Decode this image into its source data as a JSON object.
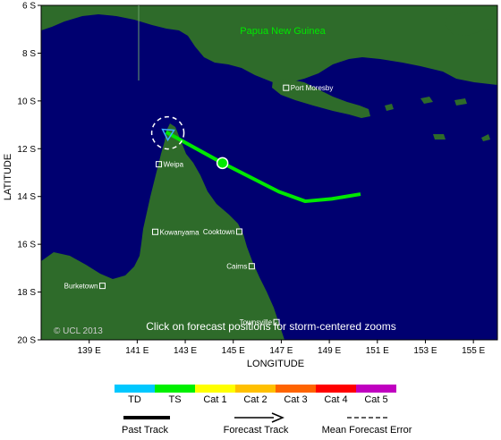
{
  "map": {
    "region_label": "Papua New Guinea",
    "x_axis_title": "LONGITUDE",
    "y_axis_title": "LATITUDE",
    "lon_ticks": [
      "139 E",
      "141 E",
      "143 E",
      "145 E",
      "147 E",
      "149 E",
      "151 E",
      "153 E",
      "155 E"
    ],
    "lat_ticks": [
      "6 S",
      "8 S",
      "10 S",
      "12 S",
      "14 S",
      "16 S",
      "18 S",
      "20 S"
    ],
    "lon_range": [
      137.0,
      156.0
    ],
    "lat_range": [
      6.0,
      20.0
    ],
    "copyright": "© UCL 2013",
    "hint": "Click on forecast positions for storm-centered zooms",
    "ocean_color": "#000070",
    "land_color": "#2e6b2a",
    "cities": [
      {
        "name": "Port Moresby",
        "lon": 147.2,
        "lat": 9.45
      },
      {
        "name": "Weipa",
        "lon": 141.9,
        "lat": 12.65
      },
      {
        "name": "Cooktown",
        "lon": 145.25,
        "lat": 15.47
      },
      {
        "name": "Kowanyama",
        "lon": 141.75,
        "lat": 15.48
      },
      {
        "name": "Cairns",
        "lon": 145.77,
        "lat": 16.92
      },
      {
        "name": "Burketown",
        "lon": 139.55,
        "lat": 17.74
      },
      {
        "name": "Townsville",
        "lon": 146.8,
        "lat": 19.26
      }
    ],
    "forecast_track": [
      {
        "lon": 150.3,
        "lat": 13.9
      },
      {
        "lon": 149.1,
        "lat": 14.1
      },
      {
        "lon": 148.0,
        "lat": 14.2
      },
      {
        "lon": 146.9,
        "lat": 13.8
      },
      {
        "lon": 144.55,
        "lat": 12.6
      },
      {
        "lon": 142.2,
        "lat": 11.3
      }
    ],
    "current_position": {
      "lon": 144.55,
      "lat": 12.6
    },
    "end_position": {
      "lon": 142.2,
      "lat": 11.3
    },
    "track_color": "#00e800"
  },
  "legend": {
    "categories": [
      {
        "label": "TD",
        "color": "#00c8ff"
      },
      {
        "label": "TS",
        "color": "#00f000"
      },
      {
        "label": "Cat 1",
        "color": "#ffff00"
      },
      {
        "label": "Cat 2",
        "color": "#ffc000"
      },
      {
        "label": "Cat 3",
        "color": "#ff6400"
      },
      {
        "label": "Cat 4",
        "color": "#ff0000"
      },
      {
        "label": "Cat 5",
        "color": "#c000c0"
      }
    ],
    "past_track_label": "Past Track",
    "forecast_track_label": "Forecast Track",
    "error_label": "Mean Forecast Error"
  }
}
